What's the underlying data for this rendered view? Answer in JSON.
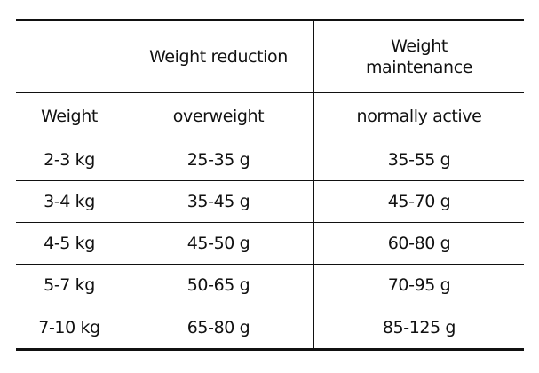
{
  "table": {
    "header": {
      "corner": "",
      "col_reduction": "Weight reduction",
      "col_maintenance_line1": "Weight",
      "col_maintenance_line2": "maintenance"
    },
    "subheader": {
      "weight": "Weight",
      "reduction": "overweight",
      "maintenance": "normally active"
    },
    "rows": [
      {
        "weight": "2-3 kg",
        "reduction": "25-35 g",
        "maintenance": "35-55 g"
      },
      {
        "weight": "3-4 kg",
        "reduction": "35-45 g",
        "maintenance": "45-70 g"
      },
      {
        "weight": "4-5 kg",
        "reduction": "45-50 g",
        "maintenance": "60-80 g"
      },
      {
        "weight": "5-7 kg",
        "reduction": "50-65 g",
        "maintenance": "70-95 g"
      },
      {
        "weight": "7-10 kg",
        "reduction": "65-80 g",
        "maintenance": "85-125 g"
      }
    ]
  }
}
